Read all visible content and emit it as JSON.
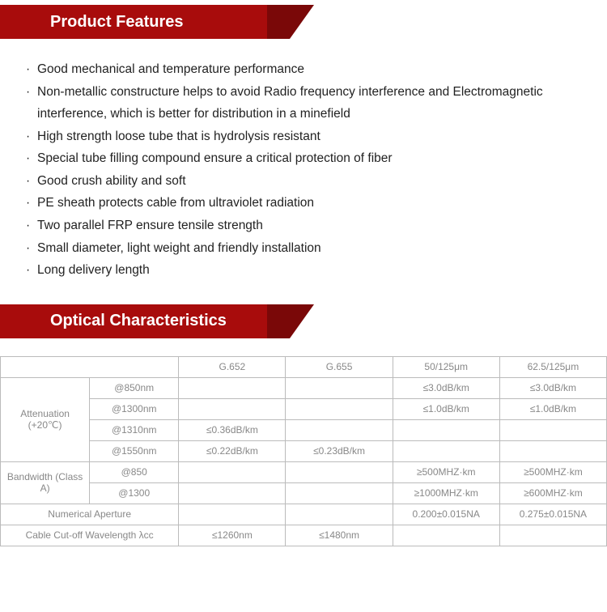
{
  "banner1": {
    "title": "Product Features"
  },
  "features": [
    "Good mechanical and temperature performance",
    "Non-metallic constructure helps to avoid Radio frequency interference and Electromagnetic interference, which is better for distribution in a minefield",
    "High strength loose tube that is hydrolysis resistant",
    "Special tube filling compound ensure a critical protection of fiber",
    "Good crush ability and soft",
    "PE sheath protects cable from ultraviolet radiation",
    "Two parallel FRP ensure tensile strength",
    "Small diameter, light weight and friendly installation",
    "Long delivery length"
  ],
  "banner2": {
    "title": "Optical Characteristics"
  },
  "table": {
    "columns": [
      "",
      "",
      "G.652",
      "G.655",
      "50/125μm",
      "62.5/125μm"
    ],
    "groups": [
      {
        "label": "Attenuation (+20℃)",
        "rows": [
          {
            "sub": "@850nm",
            "v": [
              "",
              "",
              "≤3.0dB/km",
              "≤3.0dB/km"
            ]
          },
          {
            "sub": "@1300nm",
            "v": [
              "",
              "",
              "≤1.0dB/km",
              "≤1.0dB/km"
            ]
          },
          {
            "sub": "@1310nm",
            "v": [
              "≤0.36dB/km",
              "",
              "",
              ""
            ]
          },
          {
            "sub": "@1550nm",
            "v": [
              "≤0.22dB/km",
              "≤0.23dB/km",
              "",
              ""
            ]
          }
        ]
      },
      {
        "label": "Bandwidth (Class A)",
        "rows": [
          {
            "sub": "@850",
            "v": [
              "",
              "",
              "≥500MHZ·km",
              "≥500MHZ·km"
            ]
          },
          {
            "sub": "@1300",
            "v": [
              "",
              "",
              "≥1000MHZ·km",
              "≥600MHZ·km"
            ]
          }
        ]
      },
      {
        "label": "Numerical Aperture",
        "rows": [
          {
            "sub": "",
            "v": [
              "",
              "",
              "0.200±0.015NA",
              "0.275±0.015NA"
            ]
          }
        ],
        "mergeSub": true
      },
      {
        "label": "Cable Cut-off Wavelength λcc",
        "rows": [
          {
            "sub": "",
            "v": [
              "≤1260nm",
              "≤1480nm",
              "",
              ""
            ]
          }
        ],
        "mergeSub": true
      }
    ]
  }
}
